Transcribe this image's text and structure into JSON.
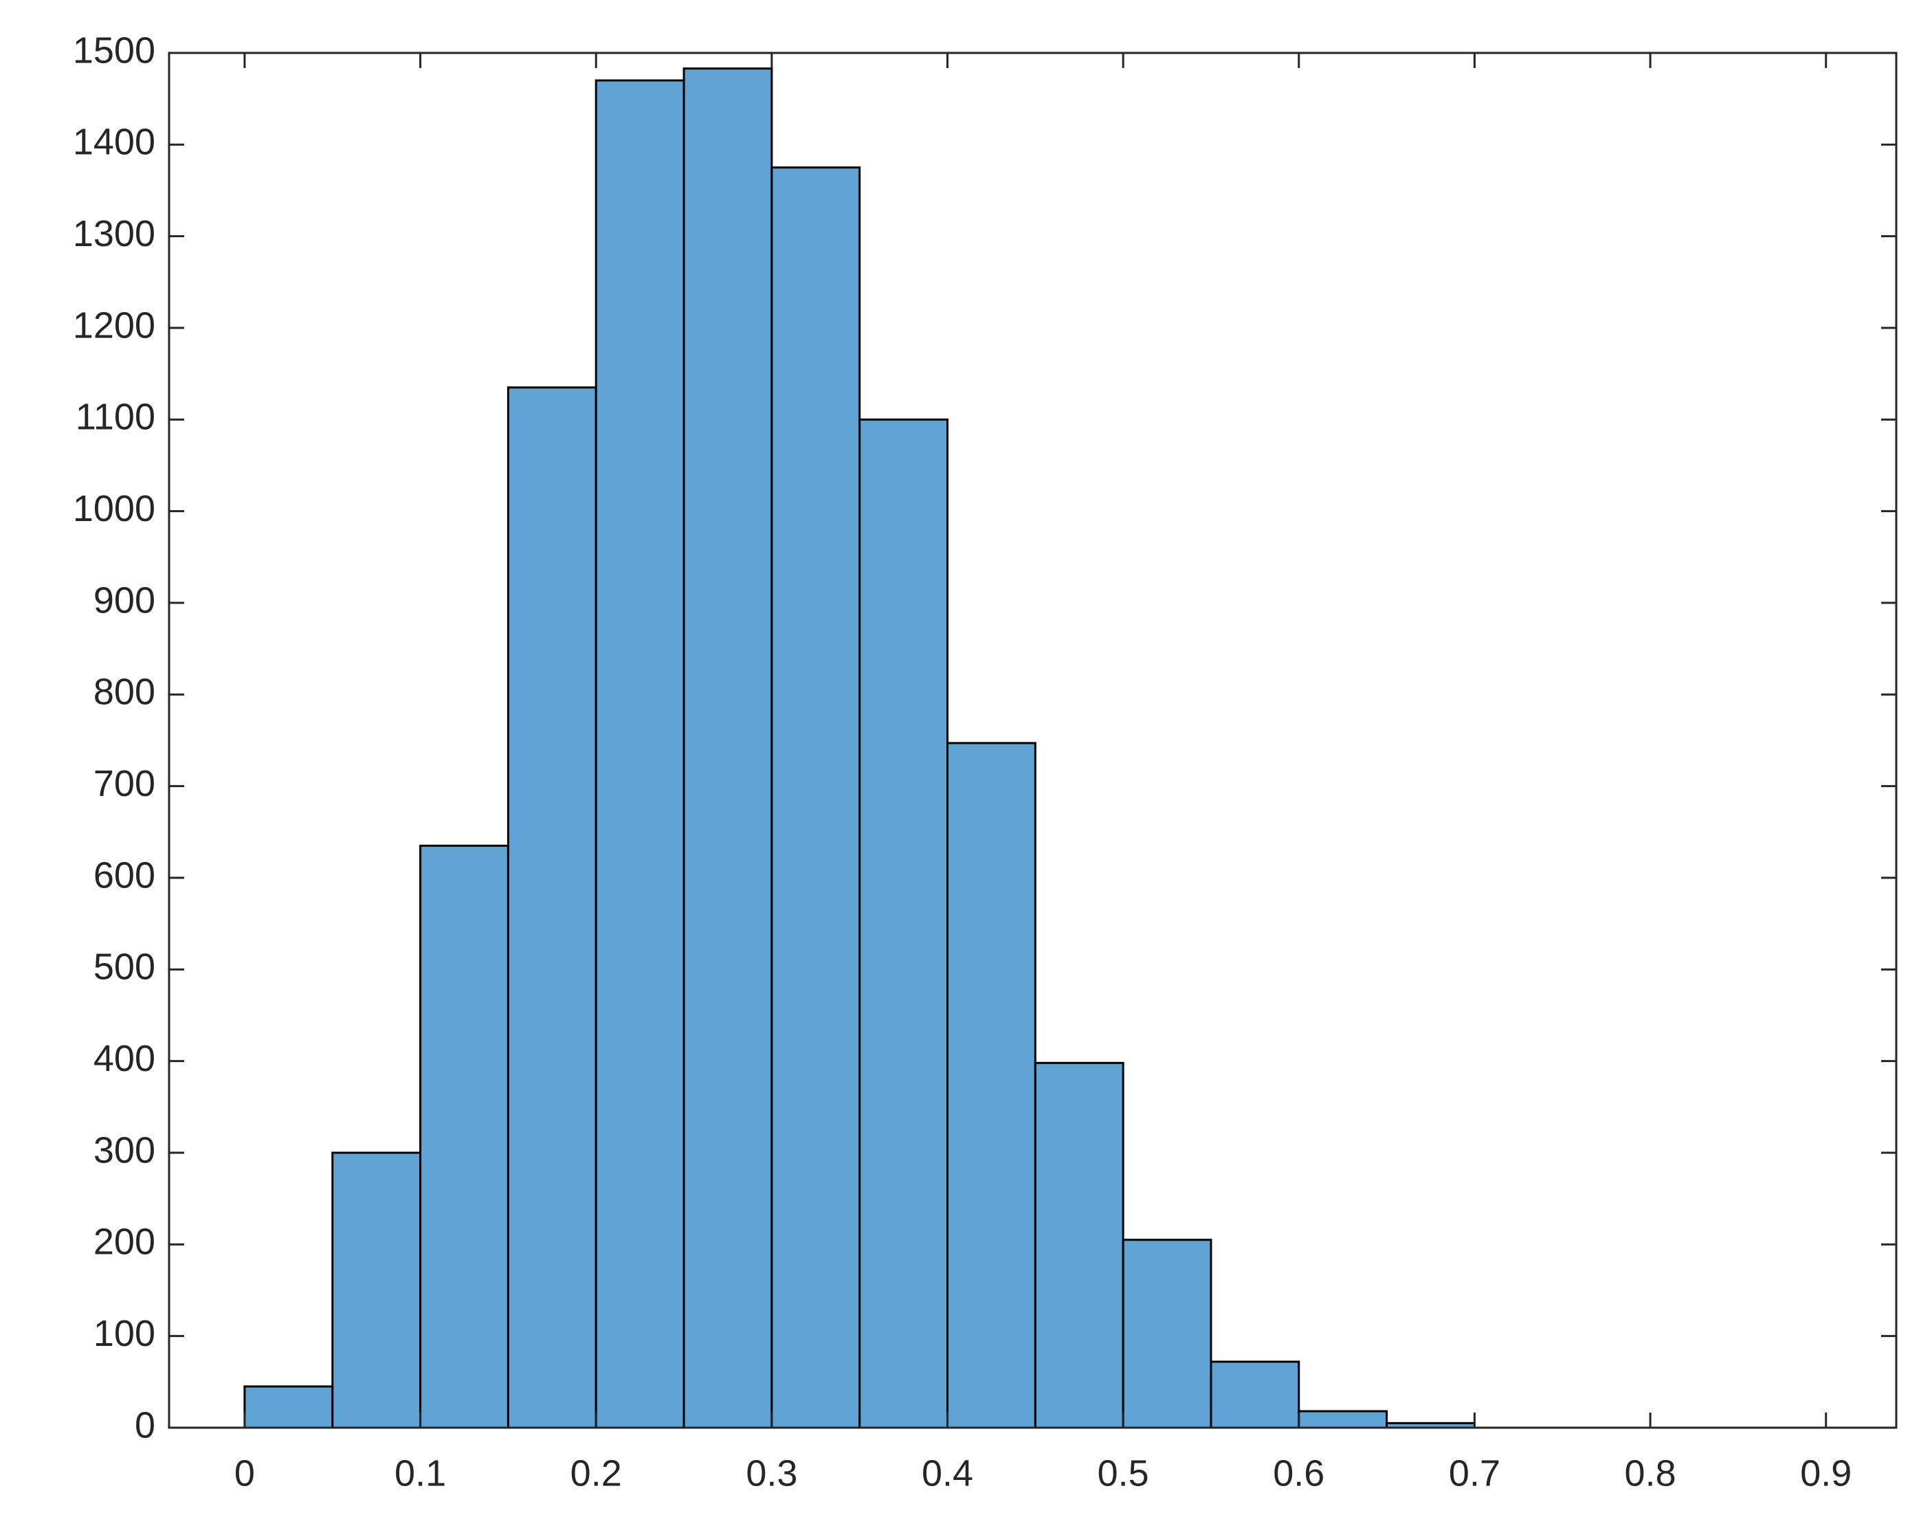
{
  "chart_data": {
    "type": "histogram",
    "bins": [
      0,
      0.05,
      0.1,
      0.15,
      0.2,
      0.25,
      0.3,
      0.35,
      0.4,
      0.45,
      0.5,
      0.55,
      0.6,
      0.65,
      0.7
    ],
    "values": [
      45,
      300,
      635,
      1135,
      1470,
      1483,
      1375,
      1100,
      747,
      398,
      205,
      72,
      18,
      5
    ],
    "color": "#5fa2d4",
    "xlim": [
      -0.043,
      0.94
    ],
    "xticks": [
      0,
      0.1,
      0.2,
      0.3,
      0.4,
      0.5,
      0.6,
      0.7,
      0.8,
      0.9
    ],
    "ylim": [
      0,
      1500
    ],
    "yticks": [
      0,
      100,
      200,
      300,
      400,
      500,
      600,
      700,
      800,
      900,
      1000,
      1100,
      1200,
      1300,
      1400,
      1500
    ],
    "grid": false
  }
}
